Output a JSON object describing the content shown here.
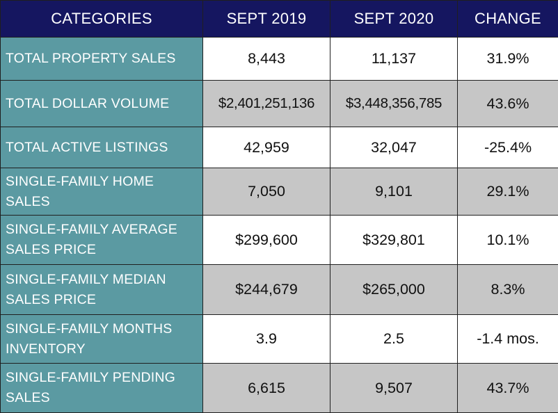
{
  "header": {
    "categories": "CATEGORIES",
    "sept_2019": "SEPT 2019",
    "sept_2020": "SEPT 2020",
    "change": "CHANGE"
  },
  "rows": [
    {
      "category": "TOTAL PROPERTY SALES",
      "sept_2019": "8,443",
      "sept_2020": "11,137",
      "change": "31.9%"
    },
    {
      "category": "TOTAL DOLLAR VOLUME",
      "sept_2019": "$2,401,251,136",
      "sept_2020": "$3,448,356,785",
      "change": "43.6%"
    },
    {
      "category": "TOTAL ACTIVE LISTINGS",
      "sept_2019": "42,959",
      "sept_2020": "32,047",
      "change": "-25.4%"
    },
    {
      "category": "SINGLE-FAMILY HOME SALES",
      "sept_2019": "7,050",
      "sept_2020": "9,101",
      "change": "29.1%"
    },
    {
      "category": "SINGLE-FAMILY AVERAGE SALES PRICE",
      "sept_2019": "$299,600",
      "sept_2020": "$329,801",
      "change": "10.1%"
    },
    {
      "category": "SINGLE-FAMILY MEDIAN SALES PRICE",
      "sept_2019": "$244,679",
      "sept_2020": "$265,000",
      "change": "8.3%"
    },
    {
      "category": "SINGLE-FAMILY MONTHS INVENTORY",
      "sept_2019": "3.9",
      "sept_2020": "2.5",
      "change": "-1.4 mos."
    },
    {
      "category": "SINGLE-FAMILY PENDING SALES",
      "sept_2019": "6,615",
      "sept_2020": "9,507",
      "change": "43.7%"
    }
  ],
  "colors": {
    "header_background": "#151660",
    "category_background": "#5b9aa2",
    "shaded_row_background": "#c6c6c6",
    "plain_row_background": "#ffffff"
  }
}
